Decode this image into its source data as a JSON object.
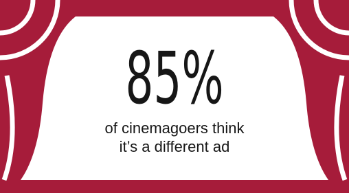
{
  "stat": {
    "value": "85%",
    "caption": [
      "of cinemagoers think",
      "it’s a different ad"
    ]
  }
}
